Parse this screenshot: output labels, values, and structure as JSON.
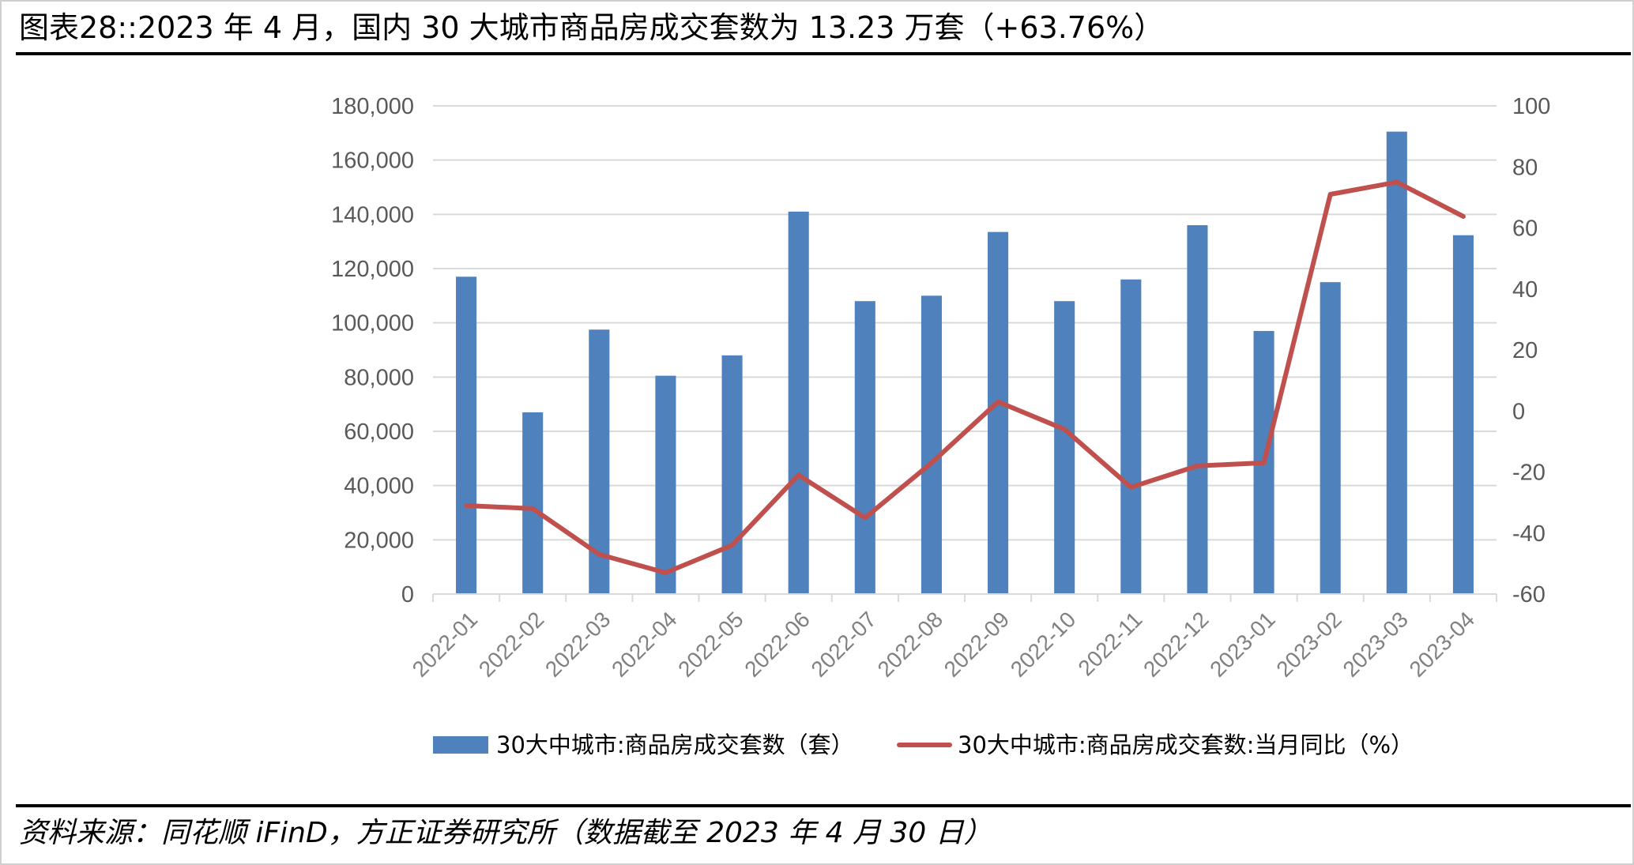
{
  "title": "图表28::2023 年 4 月，国内 30 大城市商品房成交套数为 13.23 万套（+63.76%）",
  "source": "资料来源：同花顺 iFinD，方正证券研究所（数据截至 2023 年 4 月 30 日）",
  "chart_data": {
    "type": "bar",
    "categories": [
      "2022-01",
      "2022-02",
      "2022-03",
      "2022-04",
      "2022-05",
      "2022-06",
      "2022-07",
      "2022-08",
      "2022-09",
      "2022-10",
      "2022-11",
      "2022-12",
      "2023-01",
      "2023-02",
      "2023-03",
      "2023-04"
    ],
    "series": [
      {
        "name": "30大中城市:商品房成交套数（套）",
        "type": "bar",
        "axis": "left",
        "color": "#4F81BD",
        "values": [
          117000,
          67000,
          97500,
          80500,
          88000,
          141000,
          108000,
          110000,
          133500,
          108000,
          116000,
          136000,
          97000,
          115000,
          170500,
          132300
        ]
      },
      {
        "name": "30大中城市:商品房成交套数:当月同比（%）",
        "type": "line",
        "axis": "right",
        "color": "#C0504D",
        "values": [
          -31,
          -32,
          -47,
          -53,
          -44,
          -21,
          -35,
          -17,
          3,
          -6,
          -25,
          -18,
          -17,
          71,
          75,
          63.76
        ]
      }
    ],
    "ylim_left": [
      0,
      180000
    ],
    "yticks_left": [
      0,
      20000,
      40000,
      60000,
      80000,
      100000,
      120000,
      140000,
      160000,
      180000
    ],
    "ytick_labels_left": [
      "0",
      "20,000",
      "40,000",
      "60,000",
      "80,000",
      "100,000",
      "120,000",
      "140,000",
      "160,000",
      "180,000"
    ],
    "ylim_right": [
      -60,
      100
    ],
    "yticks_right": [
      -60,
      -40,
      -20,
      0,
      20,
      40,
      60,
      80,
      100
    ],
    "ytick_labels_right": [
      "-60",
      "-40",
      "-20",
      "0",
      "20",
      "40",
      "60",
      "80",
      "100"
    ],
    "grid": true,
    "legend_position": "bottom"
  }
}
